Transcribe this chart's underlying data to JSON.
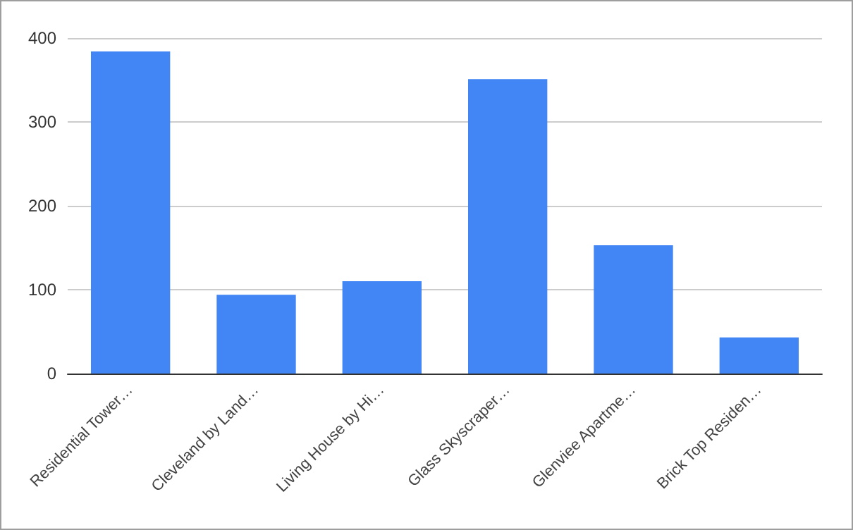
{
  "chart_data": {
    "type": "bar",
    "categories": [
      "Residential Tower…",
      "Cleveland by Land…",
      "Living House by Hi…",
      "Glass Skyscraper…",
      "Glenviee Apartme…",
      "Brick Top Residen…"
    ],
    "values": [
      384,
      94,
      110,
      351,
      153,
      43
    ],
    "color": "#4285f4",
    "ylim": [
      0,
      400
    ],
    "yticks": [
      0,
      100,
      200,
      300,
      400
    ],
    "grid": "y"
  }
}
